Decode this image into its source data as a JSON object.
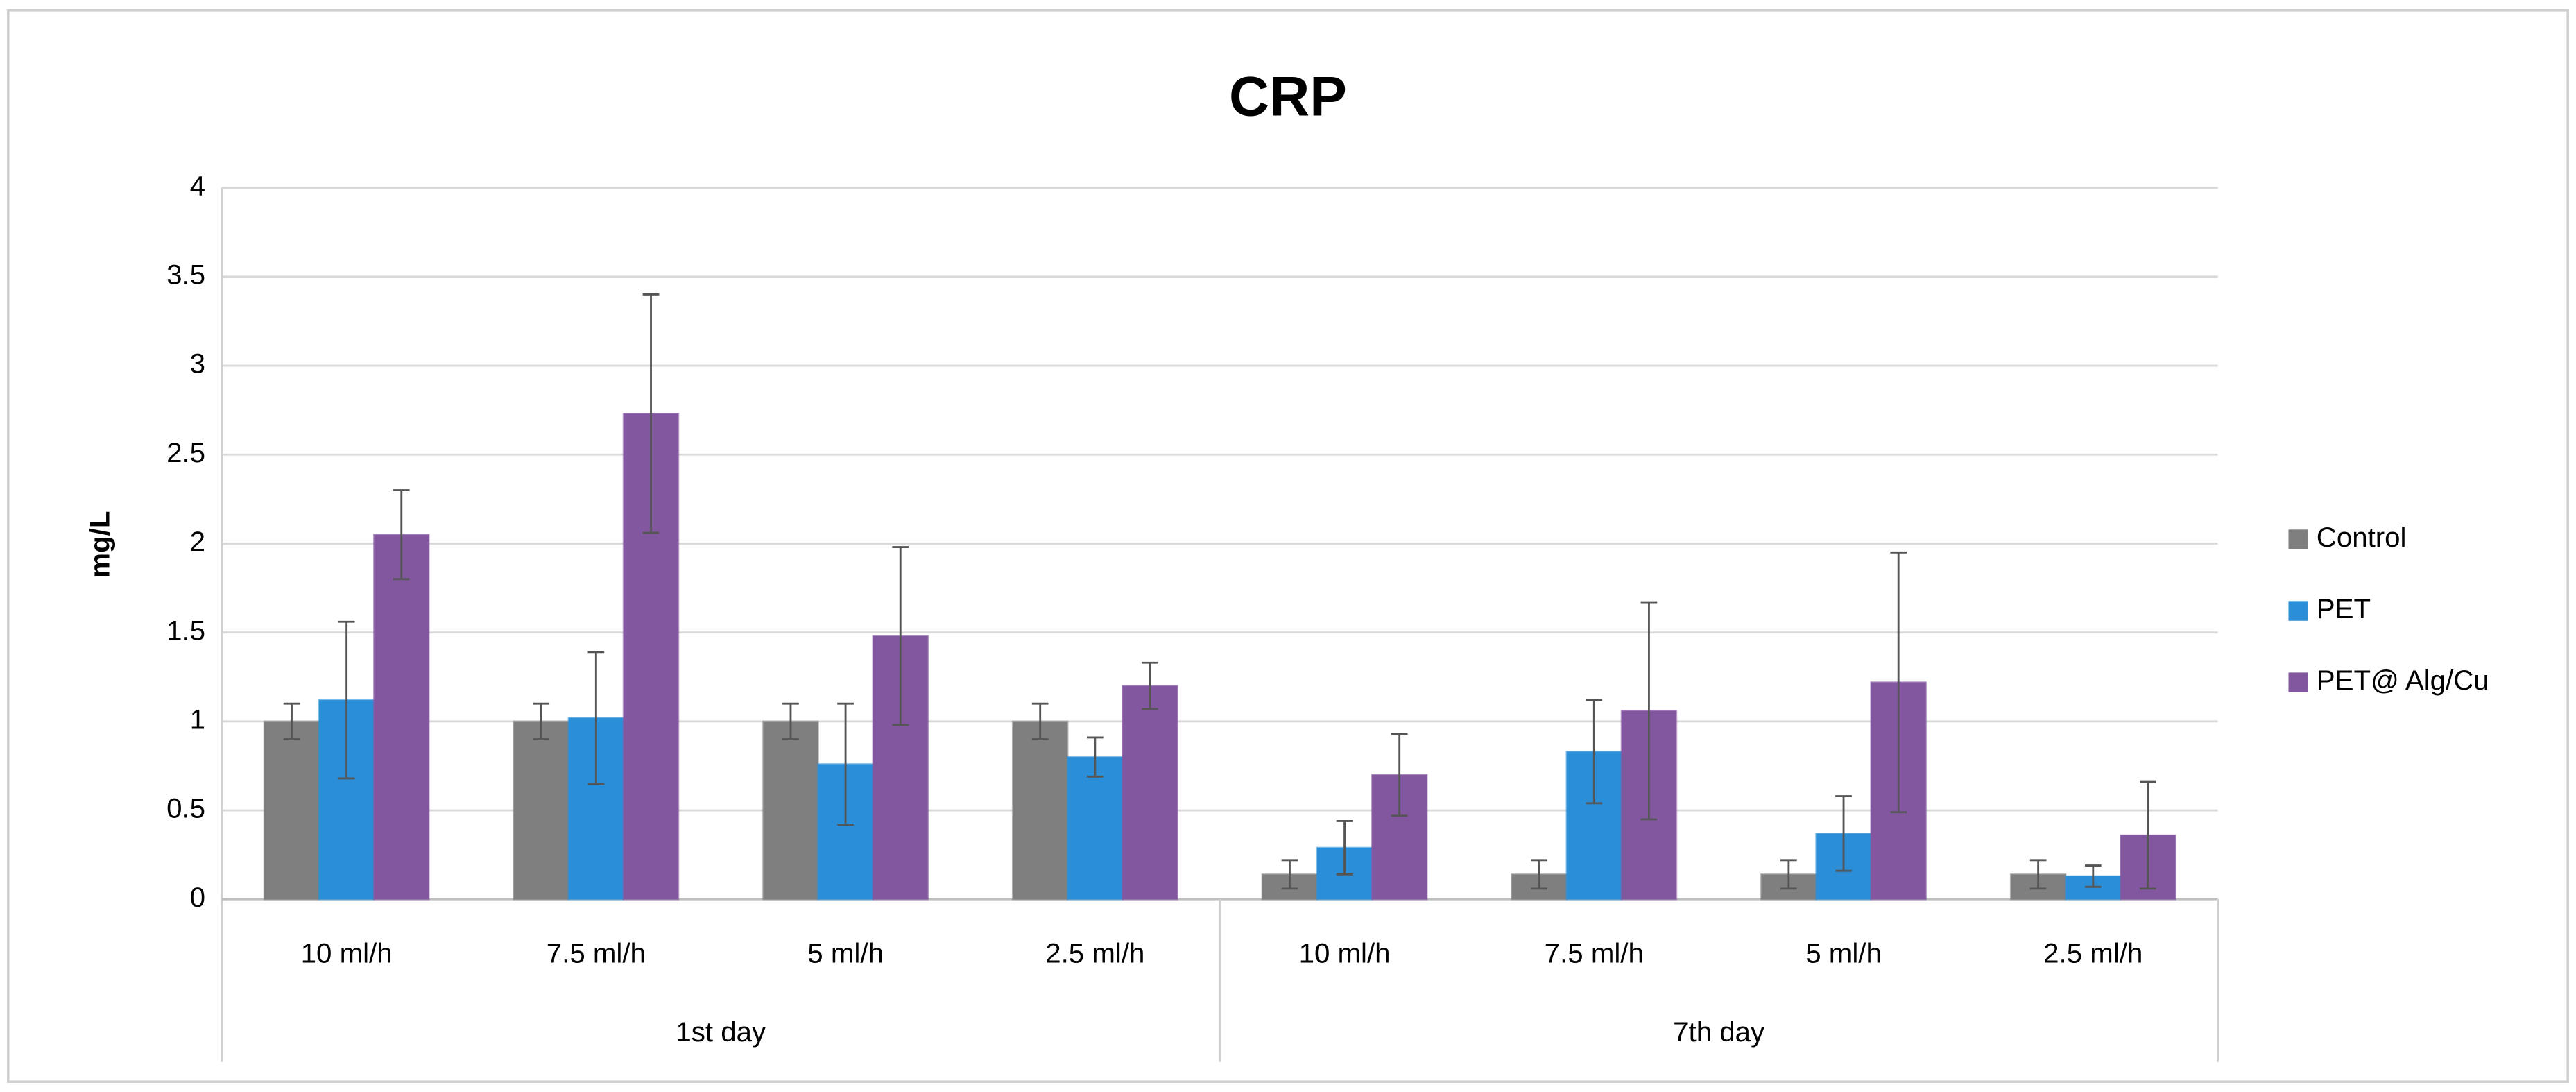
{
  "chart_data": {
    "type": "bar",
    "title": "CRP",
    "y_label": "mg/L",
    "groups": [
      {
        "name": "1st day",
        "categories": [
          "10 ml/h",
          "7.5 ml/h",
          "5 ml/h",
          "2.5 ml/h"
        ]
      },
      {
        "name": "7th day",
        "categories": [
          "10 ml/h",
          "7.5 ml/h",
          "5 ml/h",
          "2.5 ml/h"
        ]
      }
    ],
    "series": [
      {
        "name": "Control",
        "color": "#7f7f7f",
        "values": [
          1.0,
          1.0,
          1.0,
          1.0,
          0.14,
          0.14,
          0.14,
          0.14
        ],
        "errors": [
          0.1,
          0.1,
          0.1,
          0.1,
          0.08,
          0.08,
          0.08,
          0.08
        ]
      },
      {
        "name": "PET",
        "color": "#2a8fd8",
        "values": [
          1.12,
          1.02,
          0.76,
          0.8,
          0.29,
          0.83,
          0.37,
          0.13
        ],
        "errors": [
          0.44,
          0.37,
          0.34,
          0.11,
          0.15,
          0.29,
          0.21,
          0.06
        ]
      },
      {
        "name": "PET@ Alg/Cu",
        "color": "#8357a0",
        "values": [
          2.05,
          2.73,
          1.48,
          1.2,
          0.7,
          1.06,
          1.22,
          0.36
        ],
        "errors": [
          0.25,
          0.67,
          0.5,
          0.13,
          0.23,
          0.61,
          0.73,
          0.3
        ]
      }
    ],
    "ylim": [
      0,
      4
    ],
    "yticks": [
      0,
      0.5,
      1,
      1.5,
      2,
      2.5,
      3,
      3.5,
      4
    ],
    "grid": true,
    "legend": "right"
  }
}
